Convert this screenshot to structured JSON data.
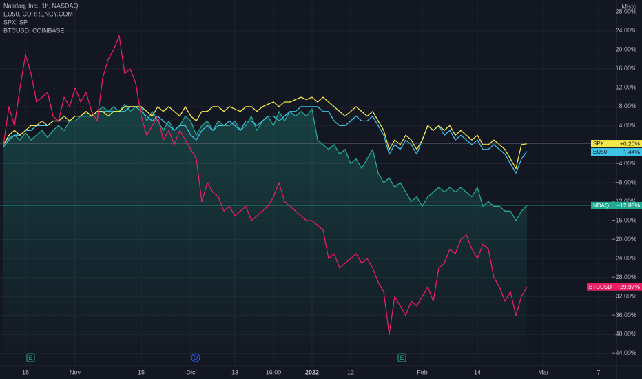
{
  "chart_data": {
    "type": "line",
    "scale_label": "Misto",
    "categories": [
      null,
      null,
      null,
      null,
      "18",
      null,
      null,
      null,
      null,
      null,
      null,
      null,
      null,
      "Nov",
      null,
      null,
      null,
      null,
      null,
      null,
      null,
      null,
      null,
      null,
      null,
      "15",
      null,
      null,
      null,
      null,
      null,
      null,
      null,
      null,
      "Dic",
      null,
      null,
      null,
      null,
      null,
      null,
      null,
      "13",
      null,
      null,
      null,
      null,
      null,
      null,
      "16:00",
      null,
      null,
      null,
      null,
      null,
      null,
      "2022",
      null,
      null,
      null,
      null,
      null,
      null,
      "12",
      null,
      null,
      null,
      null,
      null,
      null,
      null,
      null,
      null,
      null,
      null,
      null,
      "Feb",
      null,
      null,
      null,
      null,
      null,
      null,
      null,
      null,
      null,
      "14",
      null,
      null,
      null,
      null,
      null,
      null,
      null,
      null,
      null,
      null,
      null,
      "Mar",
      null,
      null,
      null,
      null,
      null,
      null,
      null,
      null,
      null,
      "7",
      null,
      null,
      null
    ],
    "ylim": [
      -46.5,
      30.5
    ],
    "yticks": [
      {
        "value": -44,
        "label": "−44.00%"
      },
      {
        "value": -40,
        "label": "−40.00%"
      },
      {
        "value": -36,
        "label": "−36.00%"
      },
      {
        "value": -32,
        "label": "−32.00%"
      },
      {
        "value": -28,
        "label": "−28.00%"
      },
      {
        "value": -24,
        "label": "−24.00%"
      },
      {
        "value": -20,
        "label": "−20.00%"
      },
      {
        "value": -16,
        "label": "−16.00%"
      },
      {
        "value": -12,
        "label": "−12.00%"
      },
      {
        "value": -8,
        "label": "−8.00%"
      },
      {
        "value": -4,
        "label": "−4.00%"
      },
      {
        "value": 4,
        "label": "4.00%"
      },
      {
        "value": 8,
        "label": "8.00%"
      },
      {
        "value": 12,
        "label": "12.00%"
      },
      {
        "value": 16,
        "label": "16.00%"
      },
      {
        "value": 20,
        "label": "20.00%"
      },
      {
        "value": 24,
        "label": "24.00%"
      },
      {
        "value": 28,
        "label": "28.00%"
      }
    ],
    "grid": true,
    "events": [
      "E",
      "D",
      "E"
    ],
    "series": [
      {
        "name": "NDAQ",
        "description": "Nasdaq, Inc., 1h, NASDAQ",
        "color": "#22ab94",
        "area": true,
        "last_value_label": "−12.85%",
        "values": [
          0,
          1.5,
          2,
          1,
          2.5,
          1,
          2,
          3,
          1.5,
          3,
          4,
          3,
          5,
          5,
          6,
          7,
          6,
          7,
          8,
          7,
          8,
          7,
          8.5,
          7,
          8,
          8,
          5,
          7,
          5,
          3,
          5,
          3,
          4,
          6,
          5,
          2,
          4,
          5,
          3,
          5,
          4,
          4,
          5,
          3,
          4,
          6,
          3,
          5,
          6,
          4,
          7,
          5,
          7,
          6,
          7,
          6,
          7.5,
          1,
          0,
          -1,
          0,
          -2,
          -1,
          -4,
          -3,
          -5,
          -3,
          -1,
          -6,
          -8,
          -7,
          -9,
          -8,
          -10,
          -12,
          -11,
          -13,
          -11,
          -10,
          -9,
          -10,
          -9,
          -10,
          -9,
          -10,
          -11,
          -9,
          -13,
          -12,
          -13,
          -13,
          -14,
          -14,
          -16,
          -14,
          -12.85,
          null,
          null,
          null,
          null,
          null,
          null,
          null,
          null,
          null,
          null,
          null,
          null,
          null,
          null,
          null,
          null
        ]
      },
      {
        "name": "EU50",
        "description": "EU50, CURRENCY.COM",
        "color": "#3cc3e6",
        "last_value_label": "−1.44%",
        "values": [
          -0.5,
          1,
          2,
          2,
          3,
          3,
          4,
          4,
          4,
          5,
          5,
          5,
          5,
          6,
          6,
          6,
          6,
          7,
          7,
          7,
          7,
          7,
          7,
          8,
          8,
          7,
          6,
          5,
          6,
          5,
          4,
          3,
          4,
          4,
          2,
          1,
          3,
          4,
          3,
          4,
          4,
          5,
          4,
          3,
          5,
          5,
          4,
          5,
          6,
          6,
          5,
          6,
          7,
          7,
          8,
          8,
          8,
          8,
          7,
          7,
          5,
          4,
          4,
          5,
          6,
          5,
          5,
          6,
          4,
          2,
          -2,
          0,
          -1,
          1,
          0,
          -2,
          1,
          4,
          3,
          4,
          2,
          3,
          1,
          2,
          1,
          0,
          1,
          -1,
          -1,
          0,
          -1,
          -2,
          -4,
          -6,
          -3,
          -1.44,
          null,
          null,
          null,
          null,
          null,
          null,
          null,
          null,
          null,
          null,
          null,
          null,
          null,
          null,
          null,
          null
        ]
      },
      {
        "name": "SPX",
        "description": "SPX, SP",
        "color": "#f5e84a",
        "last_value_label": "+0.20%",
        "values": [
          0,
          2,
          3,
          2,
          3,
          4,
          4,
          5,
          4,
          5,
          5,
          6,
          5,
          6,
          6,
          7,
          6,
          7,
          7,
          6,
          7,
          7,
          8,
          8,
          8,
          8,
          7,
          6,
          8,
          7,
          8,
          7,
          6,
          8,
          6,
          5,
          7,
          7,
          8,
          8,
          7,
          8,
          7.5,
          7,
          8,
          8,
          7,
          8,
          8.5,
          9,
          8,
          9,
          9,
          9.5,
          10,
          9.5,
          10,
          9,
          10,
          9,
          8,
          7,
          6,
          7,
          8,
          7,
          6,
          7,
          5,
          3,
          -1,
          1,
          0,
          2,
          1,
          -1,
          1,
          4,
          3,
          4,
          3,
          4,
          2,
          3,
          2,
          1,
          2,
          0,
          0,
          1,
          0,
          -1,
          -3,
          -5,
          0,
          0.2,
          null,
          null,
          null,
          null,
          null,
          null,
          null,
          null,
          null,
          null,
          null,
          null,
          null,
          null,
          null,
          null
        ]
      },
      {
        "name": "BTCUSD",
        "description": "BTCUSD, COINBASE",
        "color": "#e91e63",
        "last_value_label": "−29.97%",
        "values": [
          0,
          8,
          4,
          12,
          19,
          15,
          9,
          10,
          11,
          6,
          5,
          10,
          8,
          12,
          9,
          11,
          7,
          5,
          14,
          18,
          20,
          23,
          15,
          16,
          13,
          6,
          2,
          4,
          6,
          1,
          3,
          0,
          3,
          1,
          -1,
          -3,
          -12,
          -8,
          -10,
          -11,
          -14,
          -13,
          -15,
          -14,
          -13,
          -16,
          -15,
          -14,
          -13,
          -11,
          -8,
          -12,
          -13,
          -14,
          -15,
          -16,
          -16,
          -17,
          -18,
          -24,
          -23,
          -26,
          -25,
          -24,
          -23,
          -25,
          -24,
          -26,
          -29,
          -31,
          -40,
          -32,
          -34,
          -36,
          -33,
          -34,
          -32,
          -30,
          -33,
          -26,
          -25,
          -22,
          -23,
          -20,
          -19,
          -22,
          -24,
          -21,
          -22,
          -28,
          -30,
          -33,
          -31,
          -36,
          -32,
          -29.97,
          null,
          null,
          null,
          null,
          null,
          null,
          null,
          null,
          null,
          null,
          null,
          null,
          null,
          null,
          null,
          null
        ]
      }
    ]
  }
}
